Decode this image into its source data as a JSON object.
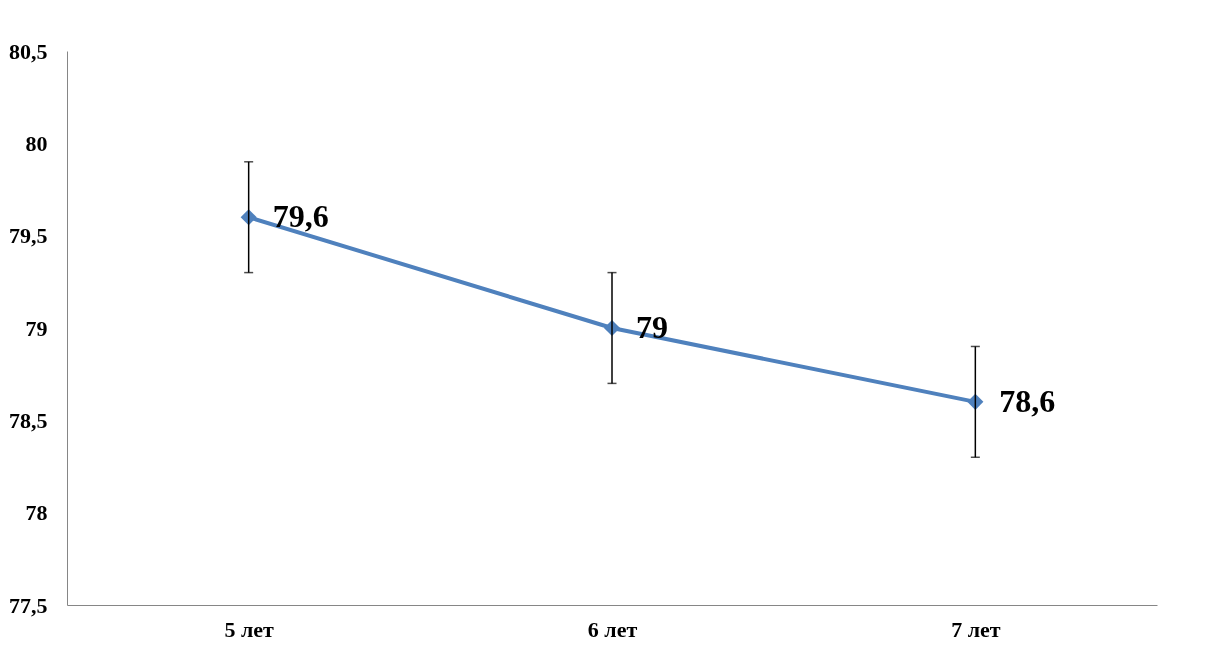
{
  "chart_data": {
    "type": "line",
    "categories": [
      "5 лет",
      "6 лет",
      "7 лет"
    ],
    "values": [
      79.6,
      79.0,
      78.6
    ],
    "errors": [
      0.3,
      0.3,
      0.3
    ],
    "value_labels": [
      "79,6",
      "79",
      "78,6"
    ],
    "color": "#4f81bd",
    "marker": "diamond",
    "ylim": [
      77.5,
      80.5
    ],
    "yticks": [
      {
        "value": 77.5,
        "label": "77,5"
      },
      78,
      {
        "value": 78.5,
        "label": "78,5"
      },
      79,
      {
        "value": 79.5,
        "label": "79,5"
      },
      80,
      {
        "value": 80.5,
        "label": "80,5"
      }
    ],
    "grid": false
  }
}
